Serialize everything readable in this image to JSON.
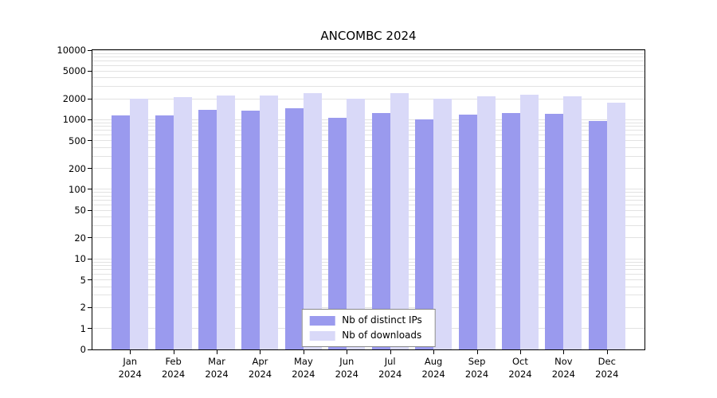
{
  "title": "ANCOMBC 2024",
  "chart_data": {
    "type": "bar",
    "title": "ANCOMBC 2024",
    "x_categories": [
      "Jan",
      "Feb",
      "Mar",
      "Apr",
      "May",
      "Jun",
      "Jul",
      "Aug",
      "Sep",
      "Oct",
      "Nov",
      "Dec"
    ],
    "x_sublabel": "2024",
    "y_scale": "log",
    "ylim": [
      0,
      10000
    ],
    "y_ticks": [
      0,
      1,
      2,
      5,
      10,
      20,
      50,
      100,
      200,
      500,
      1000,
      2000,
      5000,
      10000
    ],
    "grid": "horizontal-log-minor",
    "legend_position": "bottom-center-inside",
    "series": [
      {
        "name": "Nb of distinct IPs",
        "color": "#9a9aee",
        "values": [
          1150,
          1150,
          1400,
          1350,
          1450,
          1080,
          1250,
          1020,
          1170,
          1250,
          1220,
          950
        ]
      },
      {
        "name": "Nb of downloads",
        "color": "#d9d9f8",
        "values": [
          2000,
          2100,
          2250,
          2250,
          2400,
          2000,
          2400,
          2000,
          2150,
          2300,
          2200,
          1750
        ]
      }
    ]
  }
}
